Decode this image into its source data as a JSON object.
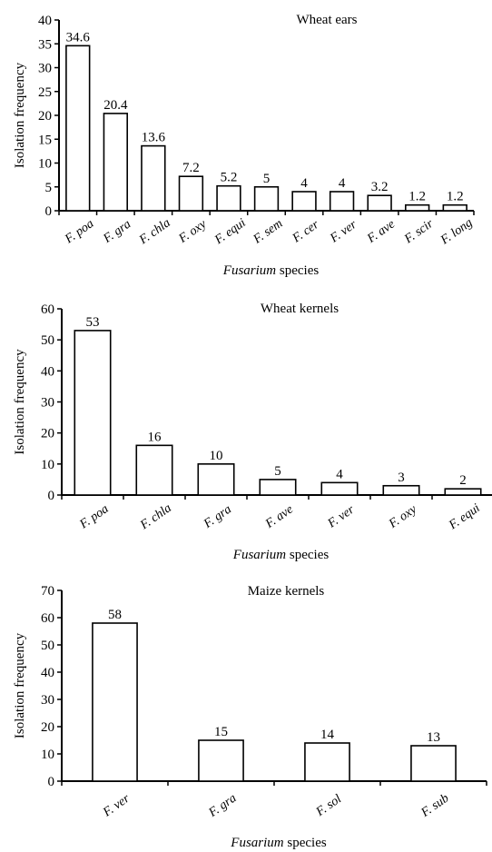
{
  "chart_data": [
    {
      "type": "bar",
      "title": "Wheat ears",
      "ylabel": "Isolation frequency",
      "xlabel_italic": "Fusarium",
      "xlabel_rest": " species",
      "ylim": [
        0,
        40
      ],
      "yticks": [
        0,
        5,
        10,
        15,
        20,
        25,
        30,
        35,
        40
      ],
      "categories": [
        "F. poa",
        "F. gra",
        "F. chla",
        "F. oxy",
        "F. equi",
        "F. sem",
        "F. cer",
        "F. ver",
        "F. ave",
        "F. scir",
        "F. long"
      ],
      "values": [
        34.6,
        20.4,
        13.6,
        7.2,
        5.2,
        5,
        4,
        4,
        3.2,
        1.2,
        1.2
      ],
      "value_labels": [
        "34.6",
        "20.4",
        "13.6",
        "7.2",
        "5.2",
        "5",
        "4",
        "4",
        "3.2",
        "1.2",
        "1.2"
      ],
      "grid": false
    },
    {
      "type": "bar",
      "title": "Wheat kernels",
      "ylabel": "Isolation frequency",
      "xlabel_italic": "Fusarium",
      "xlabel_rest": " species",
      "ylim": [
        0,
        60
      ],
      "yticks": [
        0,
        10,
        20,
        30,
        40,
        50,
        60
      ],
      "categories": [
        "F. poa",
        "F. chla",
        "F. gra",
        "F. ave",
        "F. ver",
        "F. oxy",
        "F. equi"
      ],
      "values": [
        53,
        16,
        10,
        5,
        4,
        3,
        2
      ],
      "value_labels": [
        "53",
        "16",
        "10",
        "5",
        "4",
        "3",
        "2"
      ],
      "grid": false
    },
    {
      "type": "bar",
      "title": "Maize  kernels",
      "ylabel": "Isolation frequency",
      "xlabel_italic": "Fusarium",
      "xlabel_rest": " species",
      "ylim": [
        0,
        70
      ],
      "yticks": [
        0,
        10,
        20,
        30,
        40,
        50,
        60,
        70
      ],
      "categories": [
        "F. ver",
        "F. gra",
        "F. sol",
        "F. sub"
      ],
      "values": [
        58,
        15,
        14,
        13
      ],
      "value_labels": [
        "58",
        "15",
        "14",
        "13"
      ],
      "grid": false
    }
  ]
}
